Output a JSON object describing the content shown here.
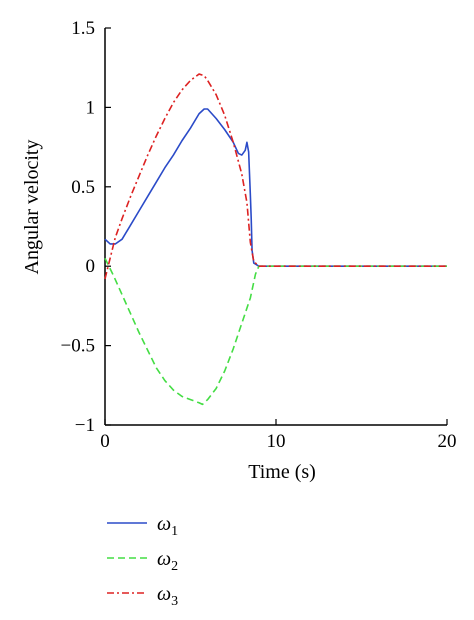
{
  "chart_data": {
    "type": "line",
    "xlabel": "Time (s)",
    "ylabel": "Angular velocity",
    "xlim": [
      0,
      20
    ],
    "ylim": [
      -1,
      1.5
    ],
    "xticks": [
      0,
      10,
      20
    ],
    "xtick_labels": [
      "0",
      "10",
      "20"
    ],
    "yticks": [
      -1,
      -0.5,
      0,
      0.5,
      1,
      1.5
    ],
    "ytick_labels": [
      "−1",
      "−0.5",
      "0",
      "0.5",
      "1",
      "1.5"
    ],
    "grid": false,
    "legend_position": "bottom-left, below plot",
    "series": [
      {
        "name": "ω1",
        "symbol": "ω",
        "subscript": "1",
        "color": "#2b4bc8",
        "dash": "solid",
        "x": [
          0,
          0.3,
          0.6,
          1.0,
          1.5,
          2.0,
          2.5,
          3.0,
          3.5,
          4.0,
          4.5,
          5.0,
          5.5,
          5.8,
          6.0,
          6.5,
          7.0,
          7.5,
          7.8,
          8.0,
          8.2,
          8.3,
          8.4,
          8.5,
          8.55,
          8.6,
          8.7,
          9.0,
          10,
          12,
          14,
          16,
          18,
          20
        ],
        "y": [
          0.17,
          0.14,
          0.14,
          0.17,
          0.26,
          0.35,
          0.44,
          0.53,
          0.62,
          0.7,
          0.79,
          0.87,
          0.96,
          0.99,
          0.99,
          0.93,
          0.86,
          0.78,
          0.71,
          0.7,
          0.73,
          0.78,
          0.72,
          0.45,
          0.3,
          0.1,
          0.02,
          0.0,
          0.0,
          0.0,
          0.0,
          0.0,
          0.0,
          0.0
        ]
      },
      {
        "name": "ω2",
        "symbol": "ω",
        "subscript": "2",
        "color": "#44dd44",
        "dash": "dashed",
        "x": [
          0,
          0.5,
          1.0,
          1.5,
          2.0,
          2.5,
          3.0,
          3.5,
          4.0,
          4.5,
          5.0,
          5.5,
          5.7,
          6.0,
          6.5,
          7.0,
          7.5,
          8.0,
          8.5,
          8.8,
          9.0,
          10,
          12,
          14,
          16,
          18,
          20
        ],
        "y": [
          0.05,
          -0.06,
          -0.18,
          -0.3,
          -0.42,
          -0.53,
          -0.64,
          -0.72,
          -0.78,
          -0.82,
          -0.84,
          -0.86,
          -0.87,
          -0.84,
          -0.77,
          -0.66,
          -0.52,
          -0.36,
          -0.2,
          -0.05,
          0.0,
          0.0,
          0.0,
          0.0,
          0.0,
          0.0,
          0.0
        ]
      },
      {
        "name": "ω3",
        "symbol": "ω",
        "subscript": "3",
        "color": "#dd2222",
        "dash": "dashdot",
        "x": [
          0,
          0.3,
          0.6,
          1.0,
          1.5,
          2.0,
          2.5,
          3.0,
          3.5,
          4.0,
          4.5,
          5.0,
          5.5,
          5.8,
          6.0,
          6.5,
          7.0,
          7.5,
          8.0,
          8.3,
          8.5,
          8.7,
          9.0,
          10,
          12,
          14,
          16,
          18,
          20
        ],
        "y": [
          -0.08,
          0.05,
          0.18,
          0.3,
          0.44,
          0.57,
          0.7,
          0.82,
          0.93,
          1.03,
          1.11,
          1.17,
          1.21,
          1.2,
          1.17,
          1.08,
          0.95,
          0.78,
          0.58,
          0.4,
          0.15,
          0.03,
          0.0,
          0.0,
          0.0,
          0.0,
          0.0,
          0.0,
          0.0
        ]
      }
    ]
  }
}
